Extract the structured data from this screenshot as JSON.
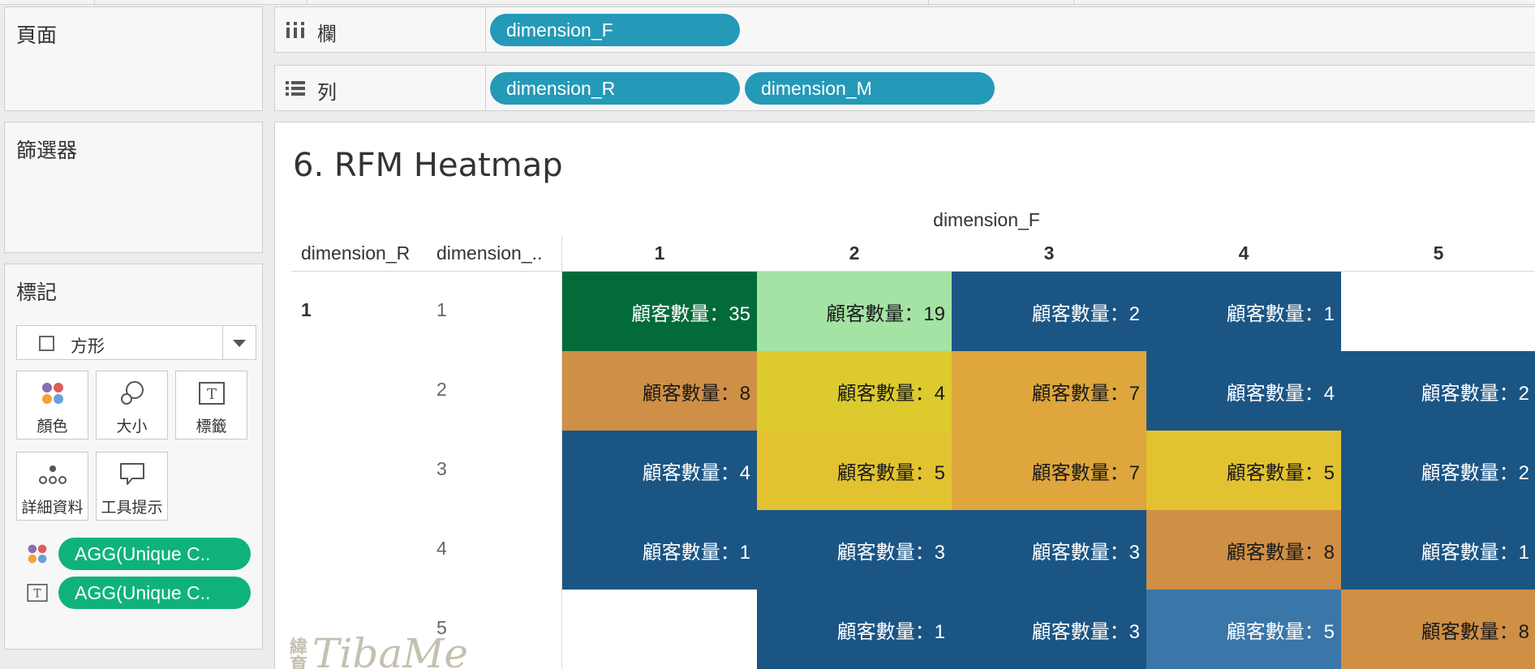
{
  "cards": {
    "pages_title": "頁面",
    "filters_title": "篩選器",
    "marks_title": "標記"
  },
  "marks": {
    "type_label": "方形",
    "buttons": [
      {
        "label": "顏色",
        "icon": "color-dots-icon"
      },
      {
        "label": "大小",
        "icon": "size-circles-icon"
      },
      {
        "label": "標籤",
        "icon": "label-t-icon"
      },
      {
        "label": "詳細資料",
        "icon": "detail-dots-icon"
      },
      {
        "label": "工具提示",
        "icon": "tooltip-bubble-icon"
      }
    ],
    "fields": [
      {
        "icon": "color-dots-icon",
        "label": "AGG(Unique C.."
      },
      {
        "icon": "label-t-icon",
        "label": "AGG(Unique C.."
      }
    ]
  },
  "shelves": {
    "columns_label": "欄",
    "rows_label": "列",
    "columns_pills": [
      "dimension_F"
    ],
    "rows_pills": [
      "dimension_R",
      "dimension_M"
    ]
  },
  "view": {
    "title": "6. RFM Heatmap",
    "col_axis_title": "dimension_F",
    "row_axis_title_1": "dimension_R",
    "row_axis_title_2": "dimension_.."
  },
  "chart_data": {
    "type": "heatmap",
    "title": "6. RFM Heatmap",
    "columns_field": "dimension_F",
    "rows_fields": [
      "dimension_R",
      "dimension_M"
    ],
    "x": [
      "1",
      "2",
      "3",
      "4",
      "5"
    ],
    "dimension_R": "1",
    "y": [
      "1",
      "2",
      "3",
      "4",
      "5"
    ],
    "label_prefix": "顧客數量：",
    "cells": [
      [
        {
          "v": 35,
          "color": "#036b3a",
          "text": "#ffffff"
        },
        {
          "v": 19,
          "color": "#a3e3a3",
          "text": "#1a1a1a"
        },
        {
          "v": 2,
          "color": "#1b5584",
          "text": "#ffffff"
        },
        {
          "v": 1,
          "color": "#1b5584",
          "text": "#ffffff"
        },
        null
      ],
      [
        {
          "v": 8,
          "color": "#cf8f45",
          "text": "#1a1a1a"
        },
        {
          "v": 4,
          "color": "#dcca2e",
          "text": "#1a1a1a"
        },
        {
          "v": 7,
          "color": "#dea63c",
          "text": "#1a1a1a"
        },
        {
          "v": 4,
          "color": "#1b5584",
          "text": "#ffffff"
        },
        {
          "v": 2,
          "color": "#1b5584",
          "text": "#ffffff"
        }
      ],
      [
        {
          "v": 4,
          "color": "#1b5584",
          "text": "#ffffff"
        },
        {
          "v": 5,
          "color": "#e2c231",
          "text": "#1a1a1a"
        },
        {
          "v": 7,
          "color": "#dea63c",
          "text": "#1a1a1a"
        },
        {
          "v": 5,
          "color": "#e2c231",
          "text": "#1a1a1a"
        },
        {
          "v": 2,
          "color": "#1b5584",
          "text": "#ffffff"
        }
      ],
      [
        {
          "v": 1,
          "color": "#1b5584",
          "text": "#ffffff"
        },
        {
          "v": 3,
          "color": "#1b5584",
          "text": "#ffffff"
        },
        {
          "v": 3,
          "color": "#1b5584",
          "text": "#ffffff"
        },
        {
          "v": 8,
          "color": "#cf8f45",
          "text": "#1a1a1a"
        },
        {
          "v": 1,
          "color": "#1b5584",
          "text": "#ffffff"
        }
      ],
      [
        null,
        {
          "v": 1,
          "color": "#1b5584",
          "text": "#ffffff"
        },
        {
          "v": 3,
          "color": "#1b5584",
          "text": "#ffffff"
        },
        {
          "v": 5,
          "color": "#3a76a8",
          "text": "#ffffff"
        },
        {
          "v": 8,
          "color": "#cf8f45",
          "text": "#1a1a1a"
        }
      ]
    ]
  },
  "watermark": {
    "cn": "緯育",
    "en": "TibaMe"
  }
}
